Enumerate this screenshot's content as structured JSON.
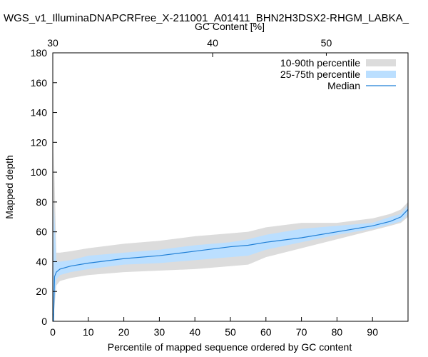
{
  "chart_data": {
    "type": "area",
    "title": "WGS_v1_IlluminaDNAPCRFree_X-211001_A01411_BHN2H3DSX2-RHGM_LABKA_",
    "xlabel": "Percentile of mapped sequence ordered by GC content",
    "ylabel": "Mapped depth",
    "x2label": "GC Content [%]",
    "xlim": [
      0,
      100
    ],
    "ylim": [
      0,
      180
    ],
    "x_ticks": [
      0,
      10,
      20,
      30,
      40,
      50,
      60,
      70,
      80,
      90
    ],
    "y_ticks": [
      0,
      20,
      40,
      60,
      80,
      100,
      120,
      140,
      160,
      180
    ],
    "x2_ticks": [
      {
        "label": "30",
        "at_percentile": 0
      },
      {
        "label": "40",
        "at_percentile": 45
      },
      {
        "label": "50",
        "at_percentile": 77
      }
    ],
    "grid": false,
    "legend_position": "top-right",
    "colors": {
      "p10_90": "#dcdcdc",
      "p25_75": "#bbdfff",
      "median": "#1f7fd6"
    },
    "series": [
      {
        "name": "10-90th percentile",
        "x": [
          0,
          0.3,
          1,
          2,
          5,
          10,
          20,
          30,
          40,
          50,
          55,
          60,
          70,
          80,
          90,
          95,
          98,
          100
        ],
        "lower": [
          0,
          5,
          24,
          27,
          29,
          31,
          33,
          34,
          35,
          37,
          38,
          43,
          49,
          55,
          61,
          64,
          66,
          70
        ],
        "upper": [
          0,
          115,
          46,
          46,
          47,
          49,
          52,
          54,
          57,
          59,
          60,
          63,
          66,
          66,
          69,
          72,
          75,
          80
        ]
      },
      {
        "name": "25-75th percentile",
        "x": [
          0,
          0.3,
          1,
          2,
          5,
          10,
          20,
          30,
          40,
          50,
          55,
          60,
          70,
          80,
          90,
          95,
          98,
          100
        ],
        "lower": [
          0,
          10,
          28,
          31,
          33,
          35,
          38,
          39,
          41,
          43,
          44,
          48,
          53,
          58,
          62,
          65,
          67,
          72
        ],
        "upper": [
          0,
          80,
          40,
          40,
          41,
          44,
          46,
          48,
          51,
          53,
          55,
          58,
          62,
          64,
          66,
          70,
          72,
          78
        ]
      },
      {
        "name": "Median",
        "x": [
          0,
          0.2,
          0.5,
          1,
          2,
          5,
          10,
          20,
          30,
          40,
          50,
          55,
          60,
          70,
          80,
          90,
          95,
          98,
          100
        ],
        "values": [
          5,
          0,
          30,
          33,
          35,
          37,
          39,
          42,
          44,
          47,
          50,
          51,
          53,
          56,
          60,
          64,
          67,
          70,
          75
        ]
      }
    ]
  }
}
